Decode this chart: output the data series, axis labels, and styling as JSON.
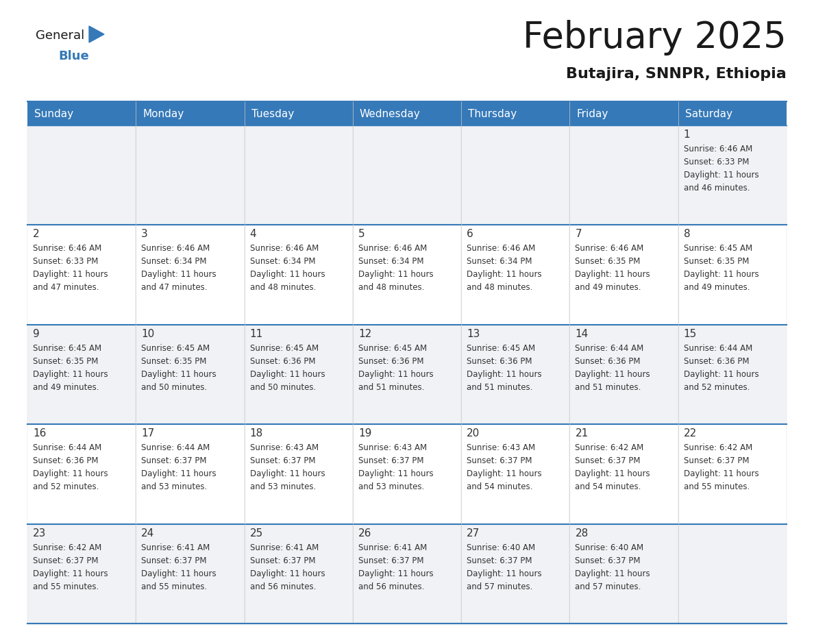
{
  "title": "February 2025",
  "subtitle": "Butajira, SNNPR, Ethiopia",
  "header_color": "#3579b8",
  "header_text_color": "#ffffff",
  "cell_bg_even": "#f0f2f5",
  "cell_bg_odd": "#ffffff",
  "border_color": "#3579b8",
  "day_headers": [
    "Sunday",
    "Monday",
    "Tuesday",
    "Wednesday",
    "Thursday",
    "Friday",
    "Saturday"
  ],
  "title_color": "#1a1a1a",
  "subtitle_color": "#1a1a1a",
  "cell_text_color": "#333333",
  "day_num_color": "#333333",
  "logo_general_color": "#1a1a1a",
  "logo_blue_color": "#3579b8",
  "logo_triangle_color": "#3579b8",
  "calendar_data": [
    [
      null,
      null,
      null,
      null,
      null,
      null,
      {
        "day": 1,
        "sunrise": "6:46 AM",
        "sunset": "6:33 PM",
        "daylight": "11 hours and 46 minutes."
      }
    ],
    [
      {
        "day": 2,
        "sunrise": "6:46 AM",
        "sunset": "6:33 PM",
        "daylight": "11 hours and 47 minutes."
      },
      {
        "day": 3,
        "sunrise": "6:46 AM",
        "sunset": "6:34 PM",
        "daylight": "11 hours and 47 minutes."
      },
      {
        "day": 4,
        "sunrise": "6:46 AM",
        "sunset": "6:34 PM",
        "daylight": "11 hours and 48 minutes."
      },
      {
        "day": 5,
        "sunrise": "6:46 AM",
        "sunset": "6:34 PM",
        "daylight": "11 hours and 48 minutes."
      },
      {
        "day": 6,
        "sunrise": "6:46 AM",
        "sunset": "6:34 PM",
        "daylight": "11 hours and 48 minutes."
      },
      {
        "day": 7,
        "sunrise": "6:46 AM",
        "sunset": "6:35 PM",
        "daylight": "11 hours and 49 minutes."
      },
      {
        "day": 8,
        "sunrise": "6:45 AM",
        "sunset": "6:35 PM",
        "daylight": "11 hours and 49 minutes."
      }
    ],
    [
      {
        "day": 9,
        "sunrise": "6:45 AM",
        "sunset": "6:35 PM",
        "daylight": "11 hours and 49 minutes."
      },
      {
        "day": 10,
        "sunrise": "6:45 AM",
        "sunset": "6:35 PM",
        "daylight": "11 hours and 50 minutes."
      },
      {
        "day": 11,
        "sunrise": "6:45 AM",
        "sunset": "6:36 PM",
        "daylight": "11 hours and 50 minutes."
      },
      {
        "day": 12,
        "sunrise": "6:45 AM",
        "sunset": "6:36 PM",
        "daylight": "11 hours and 51 minutes."
      },
      {
        "day": 13,
        "sunrise": "6:45 AM",
        "sunset": "6:36 PM",
        "daylight": "11 hours and 51 minutes."
      },
      {
        "day": 14,
        "sunrise": "6:44 AM",
        "sunset": "6:36 PM",
        "daylight": "11 hours and 51 minutes."
      },
      {
        "day": 15,
        "sunrise": "6:44 AM",
        "sunset": "6:36 PM",
        "daylight": "11 hours and 52 minutes."
      }
    ],
    [
      {
        "day": 16,
        "sunrise": "6:44 AM",
        "sunset": "6:36 PM",
        "daylight": "11 hours and 52 minutes."
      },
      {
        "day": 17,
        "sunrise": "6:44 AM",
        "sunset": "6:37 PM",
        "daylight": "11 hours and 53 minutes."
      },
      {
        "day": 18,
        "sunrise": "6:43 AM",
        "sunset": "6:37 PM",
        "daylight": "11 hours and 53 minutes."
      },
      {
        "day": 19,
        "sunrise": "6:43 AM",
        "sunset": "6:37 PM",
        "daylight": "11 hours and 53 minutes."
      },
      {
        "day": 20,
        "sunrise": "6:43 AM",
        "sunset": "6:37 PM",
        "daylight": "11 hours and 54 minutes."
      },
      {
        "day": 21,
        "sunrise": "6:42 AM",
        "sunset": "6:37 PM",
        "daylight": "11 hours and 54 minutes."
      },
      {
        "day": 22,
        "sunrise": "6:42 AM",
        "sunset": "6:37 PM",
        "daylight": "11 hours and 55 minutes."
      }
    ],
    [
      {
        "day": 23,
        "sunrise": "6:42 AM",
        "sunset": "6:37 PM",
        "daylight": "11 hours and 55 minutes."
      },
      {
        "day": 24,
        "sunrise": "6:41 AM",
        "sunset": "6:37 PM",
        "daylight": "11 hours and 55 minutes."
      },
      {
        "day": 25,
        "sunrise": "6:41 AM",
        "sunset": "6:37 PM",
        "daylight": "11 hours and 56 minutes."
      },
      {
        "day": 26,
        "sunrise": "6:41 AM",
        "sunset": "6:37 PM",
        "daylight": "11 hours and 56 minutes."
      },
      {
        "day": 27,
        "sunrise": "6:40 AM",
        "sunset": "6:37 PM",
        "daylight": "11 hours and 57 minutes."
      },
      {
        "day": 28,
        "sunrise": "6:40 AM",
        "sunset": "6:37 PM",
        "daylight": "11 hours and 57 minutes."
      },
      null
    ]
  ]
}
